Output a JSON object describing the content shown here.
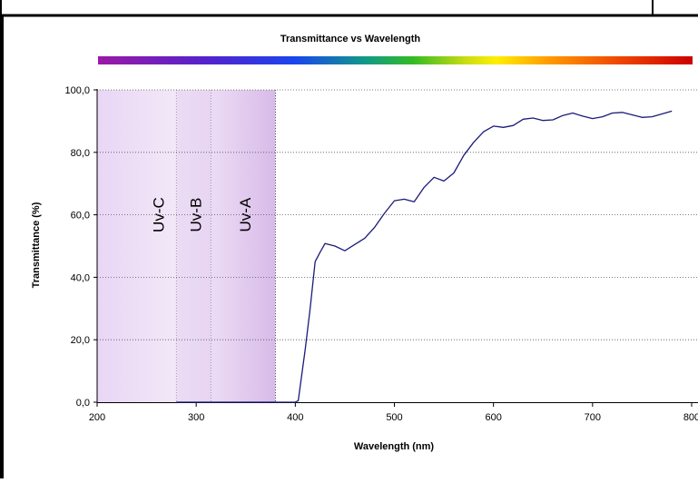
{
  "chart_data": {
    "type": "line",
    "title": "Transmittance vs Wavelength",
    "xlabel": "Wavelength (nm)",
    "ylabel": "Transmittance (%)",
    "xlim": [
      200,
      800
    ],
    "ylim": [
      0,
      100
    ],
    "x_ticks": [
      200,
      300,
      400,
      500,
      600,
      700,
      800
    ],
    "x_tick_labels": [
      "200",
      "300",
      "400",
      "500",
      "600",
      "700",
      "800"
    ],
    "y_ticks": [
      0,
      20,
      40,
      60,
      80,
      100
    ],
    "y_tick_labels": [
      "0,0",
      "20,0",
      "40,0",
      "60,0",
      "80,0",
      "100,0"
    ],
    "grid": {
      "horizontal": true,
      "style": "dotted"
    },
    "bands": [
      {
        "label": "Uv-C",
        "x_start": 200,
        "x_end": 280
      },
      {
        "label": "Uv-B",
        "x_start": 280,
        "x_end": 315
      },
      {
        "label": "Uv-A",
        "x_start": 315,
        "x_end": 380
      }
    ],
    "series": [
      {
        "color": "#1a1a7a",
        "x": [
          280,
          300,
          320,
          340,
          360,
          380,
          400,
          403,
          410,
          415,
          420,
          425,
          430,
          440,
          450,
          460,
          470,
          480,
          490,
          500,
          510,
          520,
          530,
          540,
          550,
          560,
          570,
          580,
          590,
          600,
          610,
          620,
          630,
          640,
          650,
          660,
          670,
          680,
          690,
          700,
          710,
          720,
          730,
          740,
          750,
          760,
          770,
          780
        ],
        "y": [
          0,
          0,
          0,
          0,
          0,
          0,
          0,
          0.5,
          17,
          30,
          45,
          48,
          50.8,
          50,
          48.5,
          50.5,
          52.5,
          56,
          60.5,
          64.5,
          65,
          64.2,
          68.8,
          72,
          70.8,
          73.4,
          79,
          83.2,
          86.6,
          88.4,
          88,
          88.6,
          90.6,
          91,
          90.2,
          90.4,
          91.8,
          92.6,
          91.6,
          90.8,
          91.4,
          92.6,
          92.8,
          92,
          91.2,
          91.4,
          92.3,
          93.2
        ]
      }
    ]
  }
}
